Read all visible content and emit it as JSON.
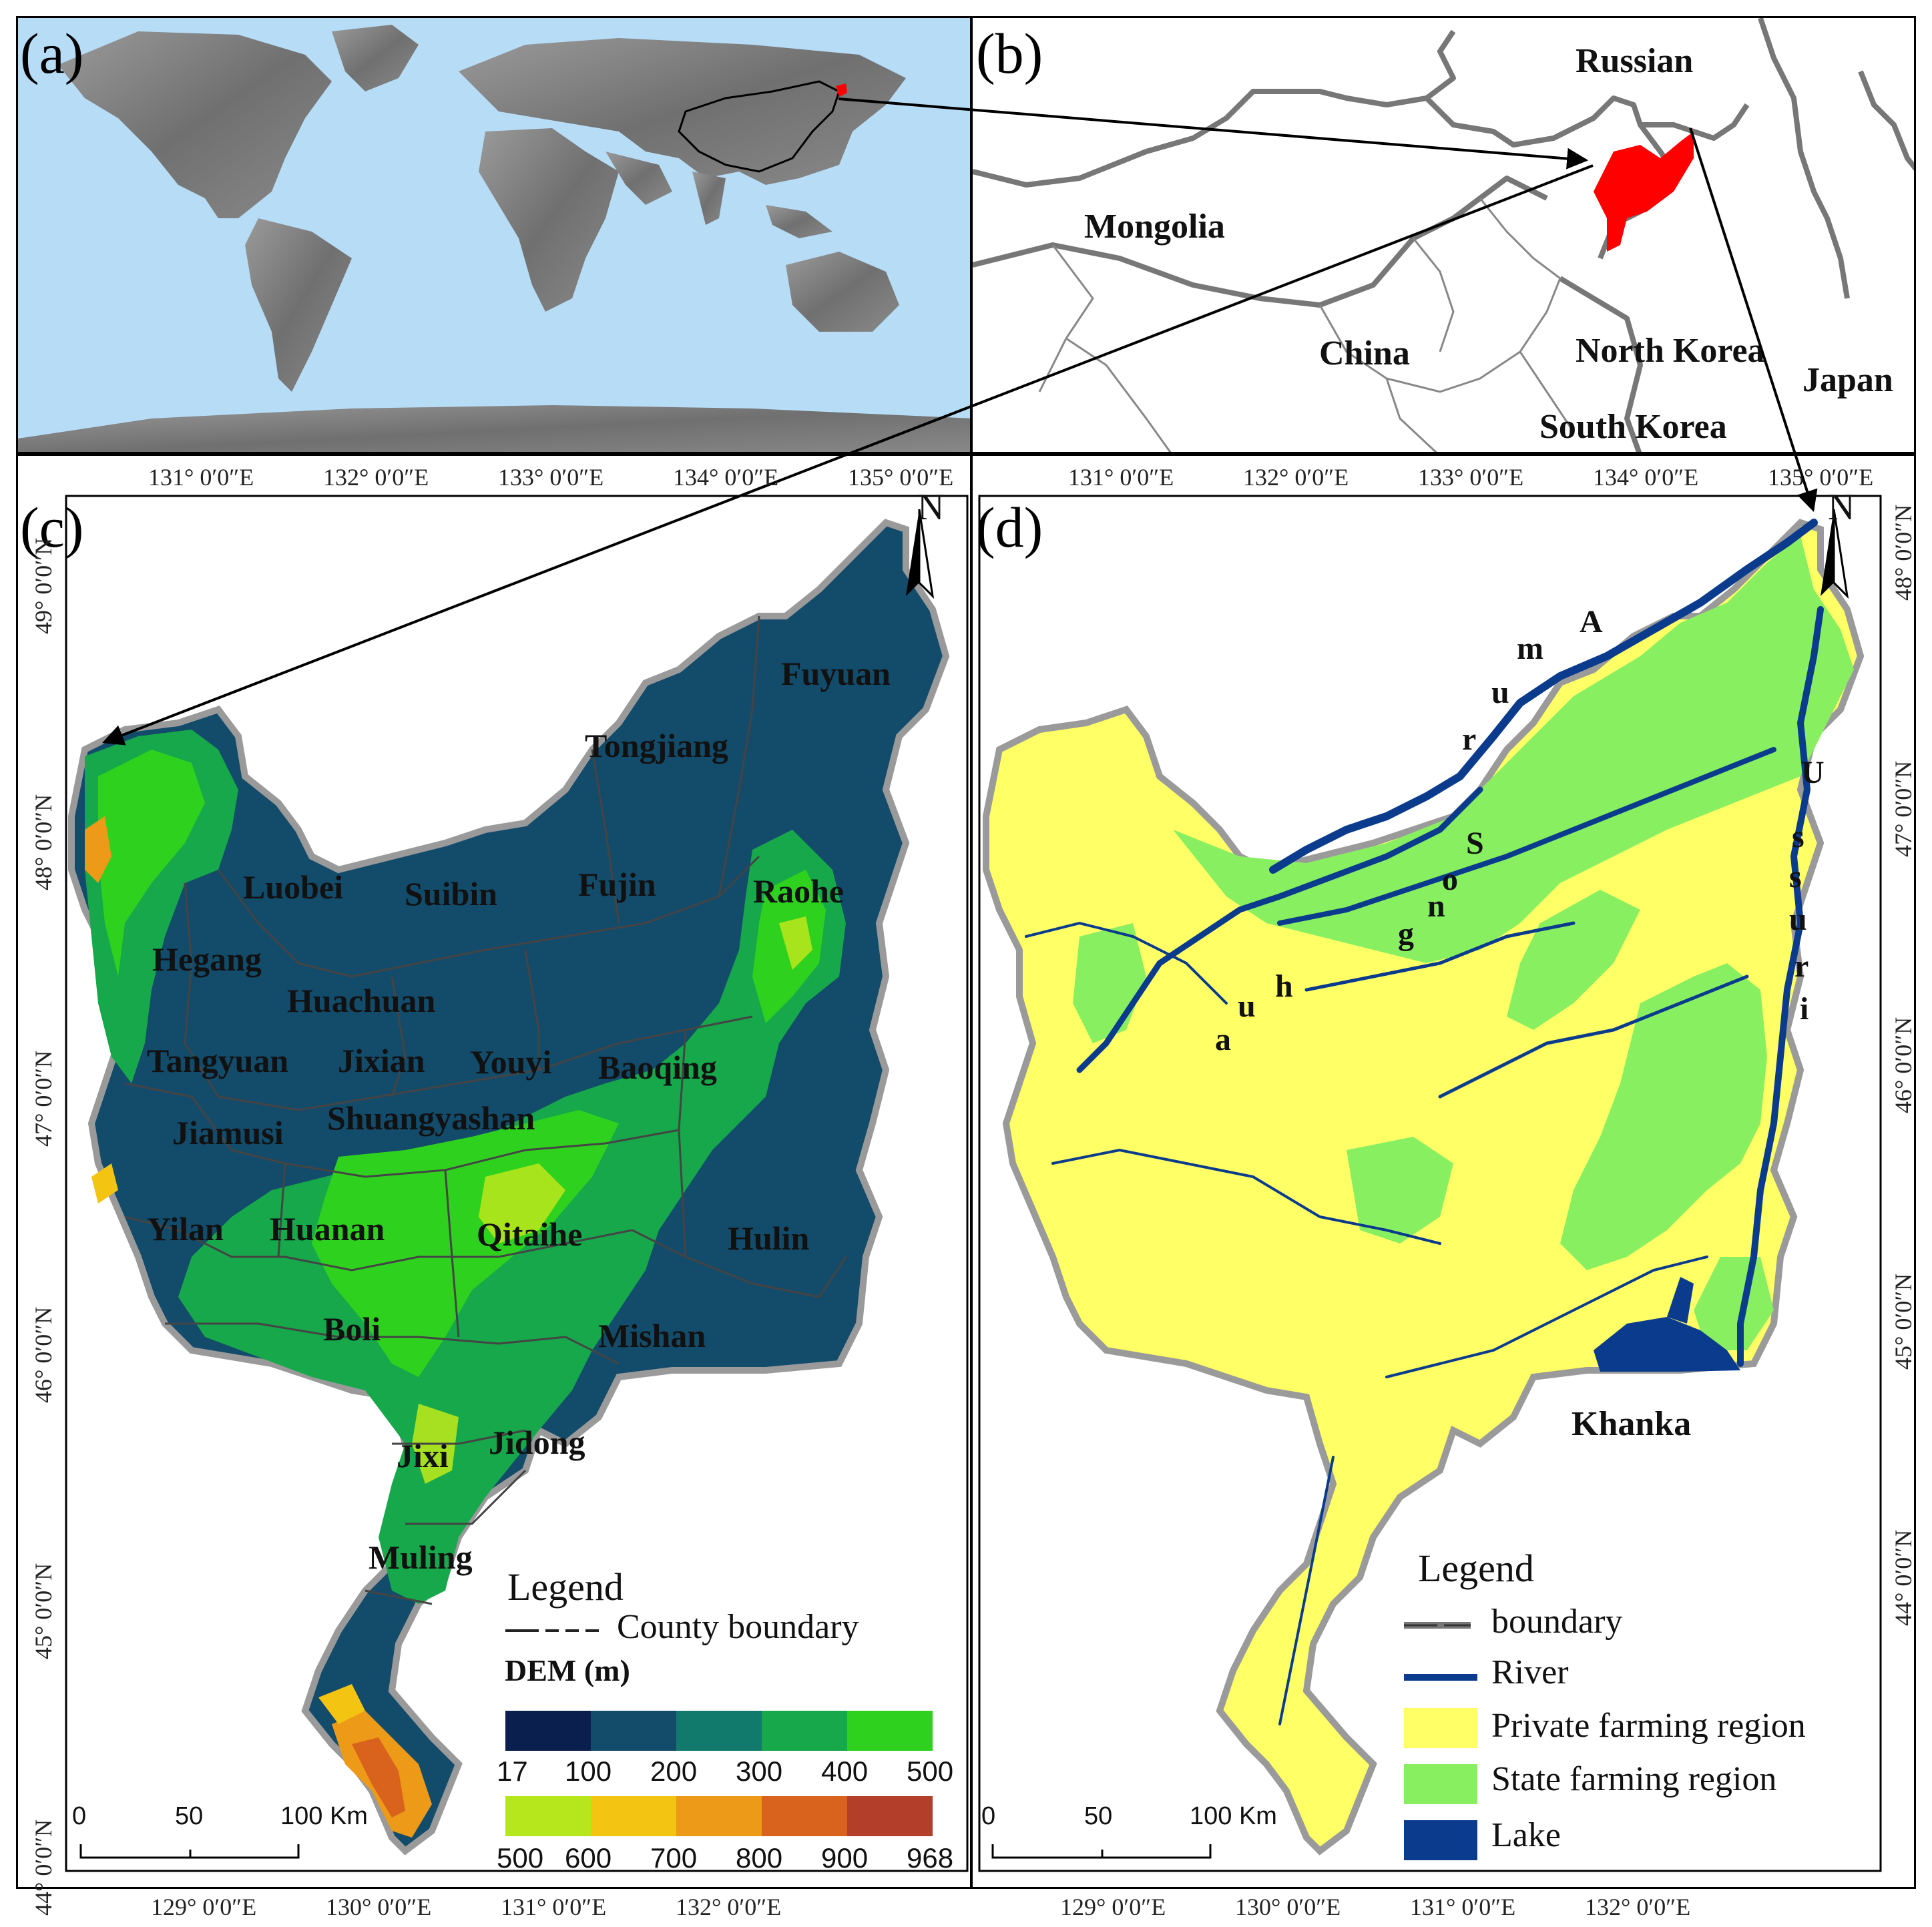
{
  "panels": {
    "a": {
      "label": "(a)"
    },
    "b": {
      "label": "(b)",
      "countries": [
        "Russian",
        "Mongolia",
        "China",
        "North Korea",
        "South Korea",
        "Japan"
      ]
    },
    "c": {
      "label": "(c)",
      "north": "N"
    },
    "d": {
      "label": "(d)",
      "north": "N"
    }
  },
  "counties": [
    "Fuyuan",
    "Tongjiang",
    "Luobei",
    "Suibin",
    "Fujin",
    "Raohe",
    "Hegang",
    "Huachuan",
    "Tangyuan",
    "Jixian",
    "Youyi",
    "Baoqing",
    "Jiamusi",
    "Shuangyashan",
    "Yilan",
    "Huanan",
    "Qitaihe",
    "Hulin",
    "Boli",
    "Mishan",
    "Jixi",
    "Jidong",
    "Muling"
  ],
  "rivers": {
    "amur": [
      "A",
      "m",
      "u",
      "r"
    ],
    "songhua": [
      "S",
      "o",
      "n",
      "g",
      "h",
      "u",
      "a"
    ],
    "ussuri": [
      "U",
      "s",
      "s",
      "u",
      "r",
      "i"
    ]
  },
  "lake_name": "Khanka",
  "coords": {
    "top_c": [
      "131° 0′0″E",
      "132° 0′0″E",
      "133° 0′0″E",
      "134° 0′0″E",
      "135° 0′0″E"
    ],
    "top_d": [
      "131° 0′0″E",
      "132° 0′0″E",
      "133° 0′0″E",
      "134° 0′0″E",
      "135° 0′0″E"
    ],
    "bottom_c": [
      "129° 0′0″E",
      "130° 0′0″E",
      "131° 0′0″E",
      "132° 0′0″E"
    ],
    "bottom_d": [
      "129° 0′0″E",
      "130° 0′0″E",
      "131° 0′0″E",
      "132° 0′0″E"
    ],
    "left_c": [
      "49° 0′0″N",
      "48° 0′0″N",
      "47° 0′0″N",
      "46° 0′0″N",
      "45° 0′0″N",
      "44° 0′0″N"
    ],
    "right_d": [
      "48° 0′0″N",
      "47° 0′0″N",
      "46° 0′0″N",
      "45° 0′0″N",
      "44° 0′0″N"
    ]
  },
  "legend_c": {
    "title": "Legend",
    "boundary": "County boundary",
    "dem_title": "DEM (m)",
    "ramp_top": [
      "17",
      "100",
      "200",
      "300",
      "400",
      "500"
    ],
    "ramp_bottom": [
      "500",
      "600",
      "700",
      "800",
      "900",
      "968"
    ],
    "ramp_top_colors": [
      "#0b1f4f",
      "#134b6b",
      "#127a6c",
      "#16a84a",
      "#2ed21e"
    ],
    "ramp_bottom_colors": [
      "#b6e61c",
      "#f3c412",
      "#ec9a17",
      "#d9631d",
      "#b33f2b"
    ]
  },
  "legend_d": {
    "title": "Legend",
    "items": [
      "boundary",
      "River",
      "Private farming region",
      "State farming region",
      "Lake"
    ],
    "colors": {
      "river": "#0b3b8c",
      "private": "#ffff66",
      "state": "#88f060",
      "lake": "#0b3b8c"
    }
  },
  "scalebar": {
    "ticks": [
      "0",
      "50",
      "100 Km"
    ]
  }
}
